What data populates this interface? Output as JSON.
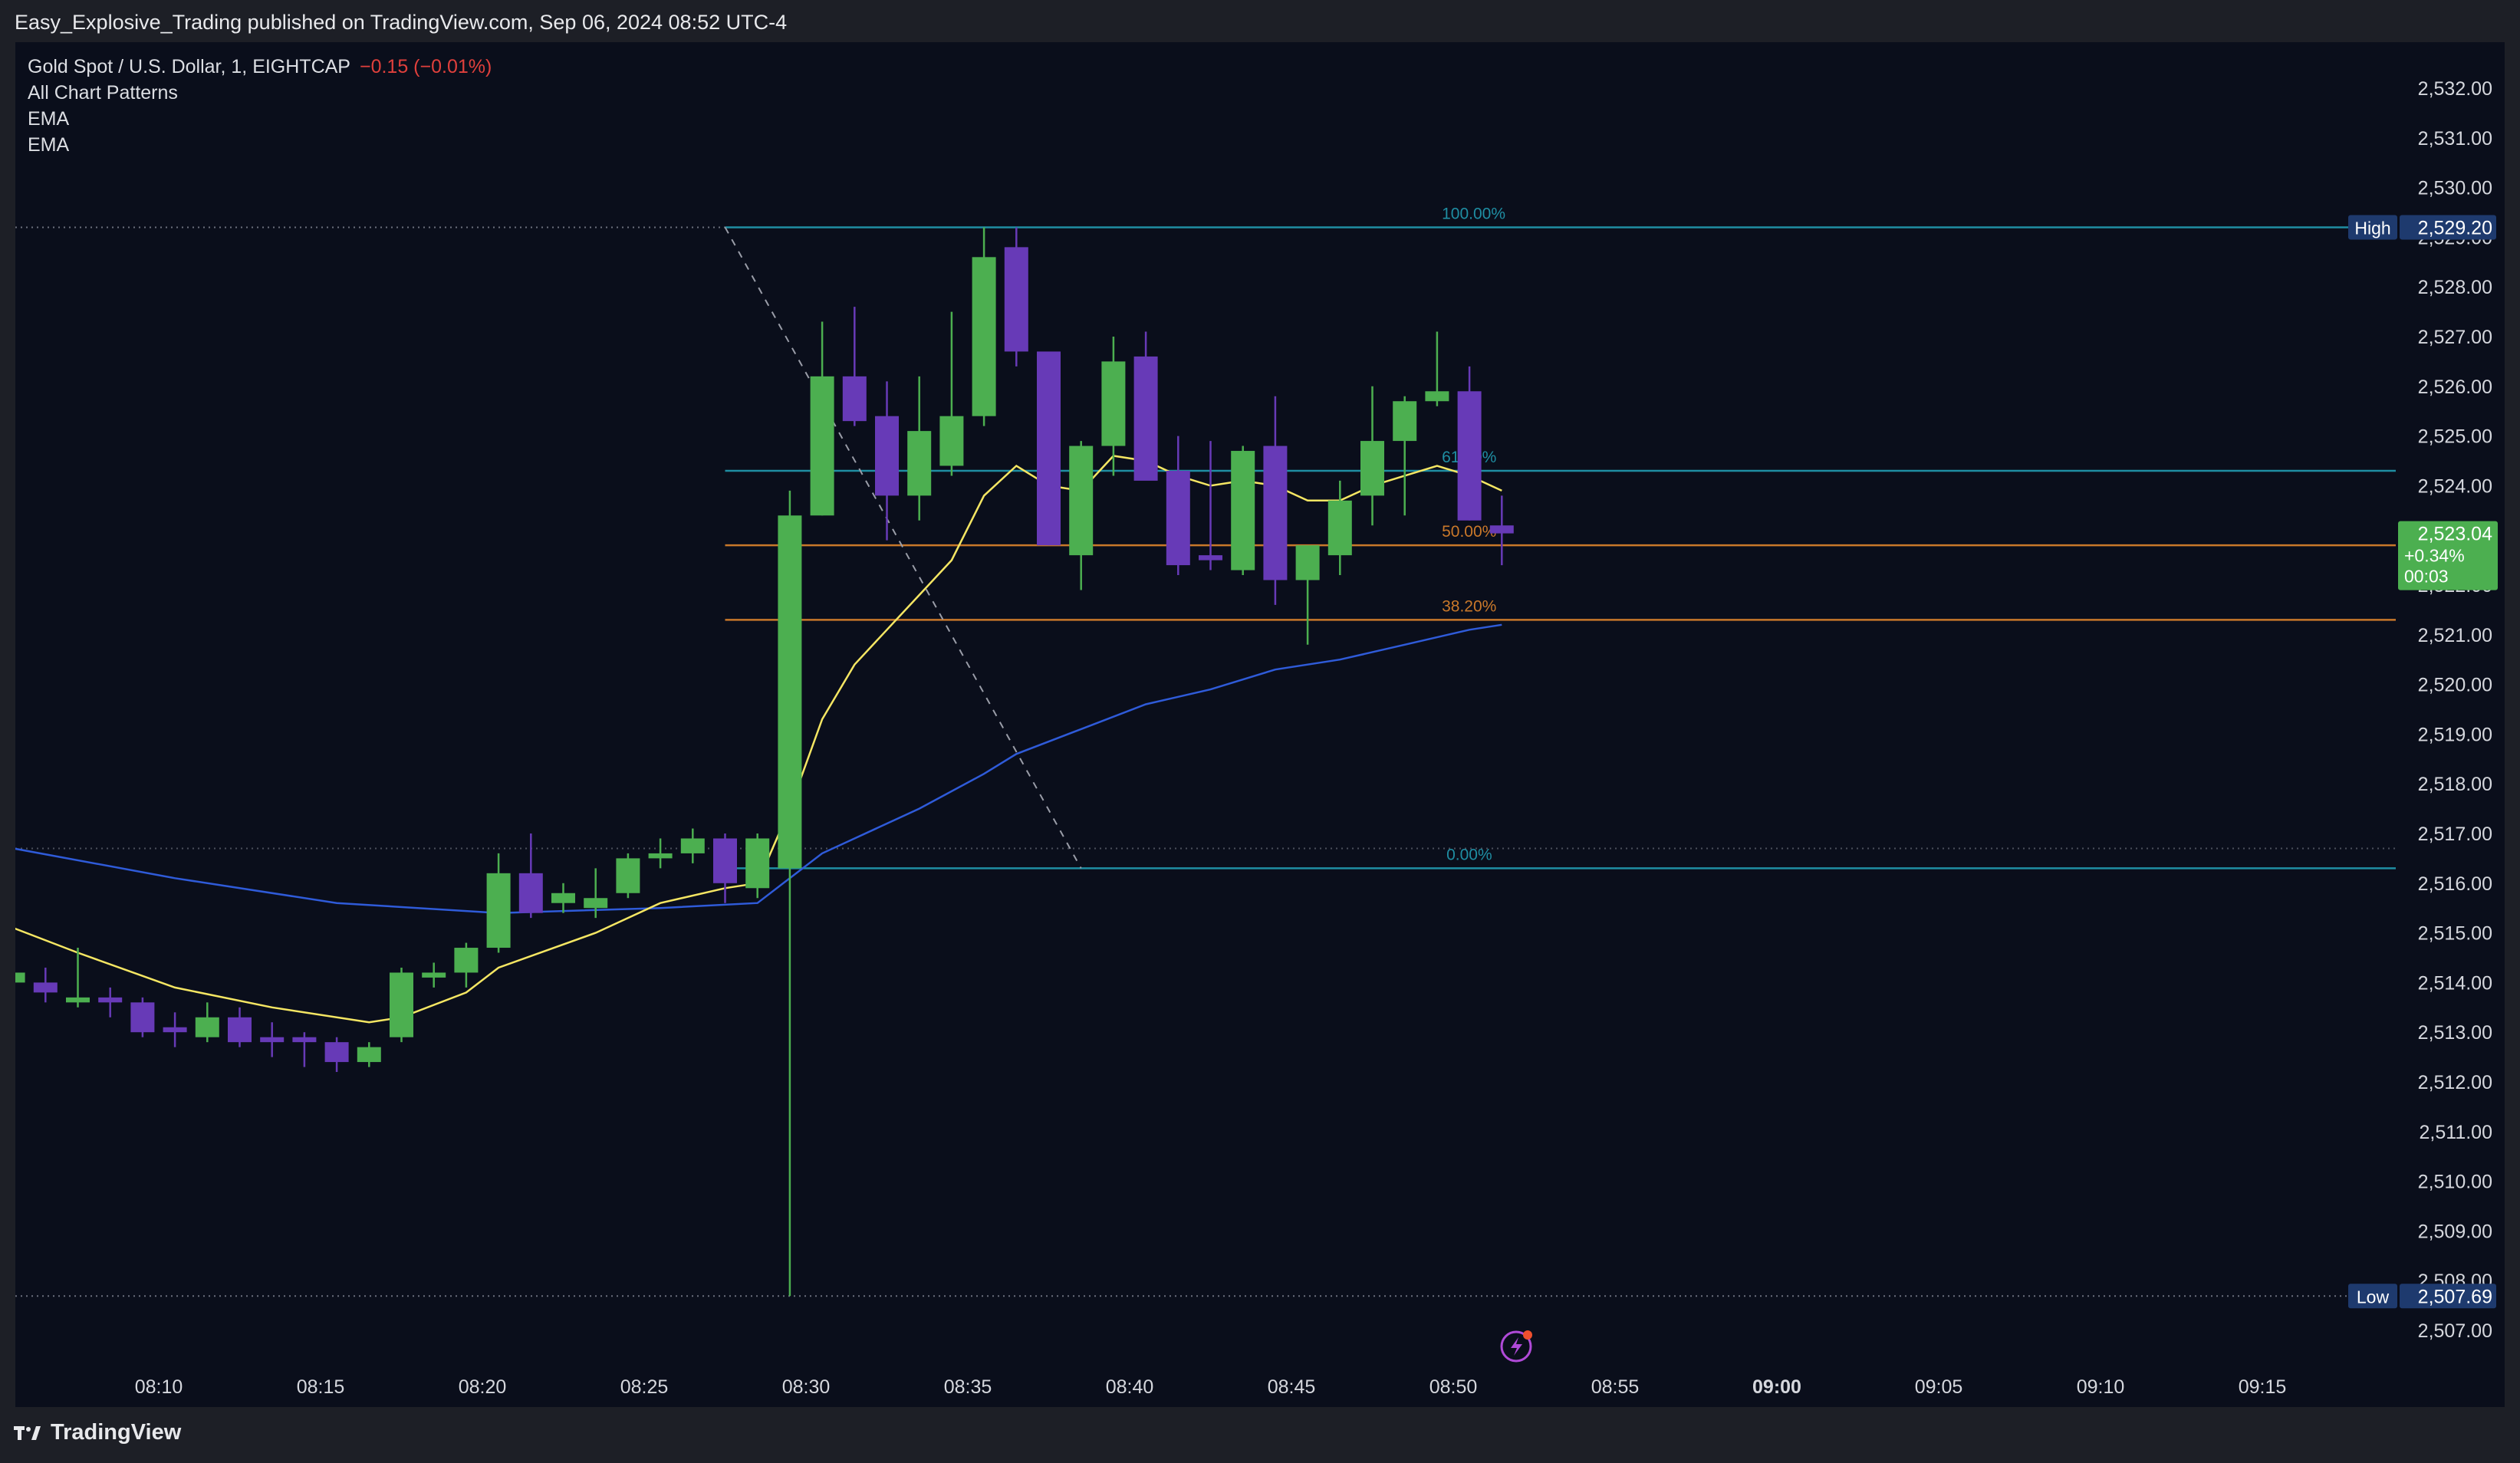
{
  "attribution": "Easy_Explosive_Trading published on TradingView.com, Sep 06, 2024 08:52 UTC-4",
  "footer": {
    "brand": "TradingView"
  },
  "legend": {
    "symbol": "Gold Spot / U.S. Dollar, 1, EIGHTCAP",
    "change": "−0.15 (−0.01%)",
    "indicators": [
      "All Chart Patterns",
      "EMA",
      "EMA"
    ]
  },
  "colors": {
    "background": "#0a0e1b",
    "up_candle": "#4caf50",
    "down_candle": "#673ab7",
    "ema_fast": "#f5e663",
    "ema_slow": "#2f5bd9",
    "fib_teal": "#1f8ea3",
    "fib_orange": "#c9782a",
    "price_label": "#4caf50",
    "high_low_label": "#1e3a6e"
  },
  "chart_data": {
    "type": "candlestick",
    "symbol": "Gold Spot / U.S. Dollar",
    "interval": "1",
    "y_range": [
      2506.5,
      2532.5
    ],
    "y_ticks": [
      "2,507.00",
      "2,508.00",
      "2,509.00",
      "2,510.00",
      "2,511.00",
      "2,512.00",
      "2,513.00",
      "2,514.00",
      "2,515.00",
      "2,516.00",
      "2,517.00",
      "2,518.00",
      "2,519.00",
      "2,520.00",
      "2,521.00",
      "2,522.00",
      "2,523.00",
      "2,524.00",
      "2,525.00",
      "2,526.00",
      "2,527.00",
      "2,528.00",
      "2,529.00",
      "2,530.00",
      "2,531.00",
      "2,532.00"
    ],
    "x_ticks": [
      {
        "label": "08:10",
        "minute": 10
      },
      {
        "label": "08:15",
        "minute": 15
      },
      {
        "label": "08:20",
        "minute": 20
      },
      {
        "label": "08:25",
        "minute": 25
      },
      {
        "label": "08:30",
        "minute": 30
      },
      {
        "label": "08:35",
        "minute": 35
      },
      {
        "label": "08:40",
        "minute": 40
      },
      {
        "label": "08:45",
        "minute": 45
      },
      {
        "label": "08:50",
        "minute": 50
      },
      {
        "label": "08:55",
        "minute": 55
      },
      {
        "label": "09:00",
        "minute": 60,
        "bold": true
      },
      {
        "label": "09:05",
        "minute": 65
      },
      {
        "label": "09:10",
        "minute": 70
      },
      {
        "label": "09:15",
        "minute": 75
      }
    ],
    "x_range_minutes": [
      5.5,
      79.5
    ],
    "candles": [
      {
        "t": 5.5,
        "o": 2514.0,
        "h": 2514.5,
        "l": 2513.7,
        "c": 2514.2
      },
      {
        "t": 6.5,
        "o": 2514.0,
        "h": 2514.3,
        "l": 2513.6,
        "c": 2513.8
      },
      {
        "t": 7.5,
        "o": 2513.6,
        "h": 2514.7,
        "l": 2513.5,
        "c": 2513.7
      },
      {
        "t": 8.5,
        "o": 2513.7,
        "h": 2513.9,
        "l": 2513.3,
        "c": 2513.6
      },
      {
        "t": 9.5,
        "o": 2513.6,
        "h": 2513.7,
        "l": 2512.9,
        "c": 2513.0
      },
      {
        "t": 10.5,
        "o": 2513.1,
        "h": 2513.4,
        "l": 2512.7,
        "c": 2513.0
      },
      {
        "t": 11.5,
        "o": 2512.9,
        "h": 2513.6,
        "l": 2512.8,
        "c": 2513.3
      },
      {
        "t": 12.5,
        "o": 2513.3,
        "h": 2513.5,
        "l": 2512.7,
        "c": 2512.8
      },
      {
        "t": 13.5,
        "o": 2512.9,
        "h": 2513.2,
        "l": 2512.5,
        "c": 2512.8
      },
      {
        "t": 14.5,
        "o": 2512.9,
        "h": 2513.0,
        "l": 2512.3,
        "c": 2512.8
      },
      {
        "t": 15.5,
        "o": 2512.8,
        "h": 2512.9,
        "l": 2512.2,
        "c": 2512.4
      },
      {
        "t": 16.5,
        "o": 2512.4,
        "h": 2512.8,
        "l": 2512.3,
        "c": 2512.7
      },
      {
        "t": 17.5,
        "o": 2512.9,
        "h": 2514.3,
        "l": 2512.8,
        "c": 2514.2
      },
      {
        "t": 18.5,
        "o": 2514.1,
        "h": 2514.4,
        "l": 2513.9,
        "c": 2514.2
      },
      {
        "t": 19.5,
        "o": 2514.2,
        "h": 2514.8,
        "l": 2513.9,
        "c": 2514.7
      },
      {
        "t": 20.5,
        "o": 2514.7,
        "h": 2516.6,
        "l": 2514.6,
        "c": 2516.2
      },
      {
        "t": 21.5,
        "o": 2516.2,
        "h": 2517.0,
        "l": 2515.3,
        "c": 2515.4
      },
      {
        "t": 22.5,
        "o": 2515.6,
        "h": 2516.0,
        "l": 2515.4,
        "c": 2515.8
      },
      {
        "t": 23.5,
        "o": 2515.5,
        "h": 2516.3,
        "l": 2515.3,
        "c": 2515.7
      },
      {
        "t": 24.5,
        "o": 2515.8,
        "h": 2516.6,
        "l": 2515.7,
        "c": 2516.5
      },
      {
        "t": 25.5,
        "o": 2516.5,
        "h": 2516.9,
        "l": 2516.3,
        "c": 2516.6
      },
      {
        "t": 26.5,
        "o": 2516.6,
        "h": 2517.1,
        "l": 2516.4,
        "c": 2516.9
      },
      {
        "t": 27.5,
        "o": 2516.9,
        "h": 2517.0,
        "l": 2515.6,
        "c": 2516.0
      },
      {
        "t": 28.5,
        "o": 2515.9,
        "h": 2517.0,
        "l": 2515.7,
        "c": 2516.9
      },
      {
        "t": 29.5,
        "o": 2516.3,
        "h": 2523.9,
        "l": 2507.69,
        "c": 2523.4
      },
      {
        "t": 30.5,
        "o": 2523.4,
        "h": 2527.3,
        "l": 2523.4,
        "c": 2526.2
      },
      {
        "t": 31.5,
        "o": 2526.2,
        "h": 2527.6,
        "l": 2525.2,
        "c": 2525.3
      },
      {
        "t": 32.5,
        "o": 2525.4,
        "h": 2526.1,
        "l": 2522.9,
        "c": 2523.8
      },
      {
        "t": 33.5,
        "o": 2523.8,
        "h": 2526.2,
        "l": 2523.3,
        "c": 2525.1
      },
      {
        "t": 34.5,
        "o": 2524.4,
        "h": 2527.5,
        "l": 2524.2,
        "c": 2525.4
      },
      {
        "t": 35.5,
        "o": 2525.4,
        "h": 2529.2,
        "l": 2525.2,
        "c": 2528.6
      },
      {
        "t": 36.5,
        "o": 2528.8,
        "h": 2529.2,
        "l": 2526.4,
        "c": 2526.7
      },
      {
        "t": 37.5,
        "o": 2526.7,
        "h": 2526.7,
        "l": 2522.8,
        "c": 2522.8
      },
      {
        "t": 38.5,
        "o": 2522.6,
        "h": 2524.9,
        "l": 2521.9,
        "c": 2524.8
      },
      {
        "t": 39.5,
        "o": 2524.8,
        "h": 2527.0,
        "l": 2524.2,
        "c": 2526.5
      },
      {
        "t": 40.5,
        "o": 2526.6,
        "h": 2527.1,
        "l": 2524.3,
        "c": 2524.1
      },
      {
        "t": 41.5,
        "o": 2524.3,
        "h": 2525.0,
        "l": 2522.2,
        "c": 2522.4
      },
      {
        "t": 42.5,
        "o": 2522.6,
        "h": 2524.9,
        "l": 2522.3,
        "c": 2522.5
      },
      {
        "t": 43.5,
        "o": 2522.3,
        "h": 2524.8,
        "l": 2522.2,
        "c": 2524.7
      },
      {
        "t": 44.5,
        "o": 2524.8,
        "h": 2525.8,
        "l": 2521.6,
        "c": 2522.1
      },
      {
        "t": 45.5,
        "o": 2522.1,
        "h": 2522.7,
        "l": 2520.8,
        "c": 2522.8
      },
      {
        "t": 46.5,
        "o": 2522.6,
        "h": 2524.1,
        "l": 2522.2,
        "c": 2523.7
      },
      {
        "t": 47.5,
        "o": 2523.8,
        "h": 2526.0,
        "l": 2523.2,
        "c": 2524.9
      },
      {
        "t": 48.5,
        "o": 2524.9,
        "h": 2525.8,
        "l": 2523.4,
        "c": 2525.7
      },
      {
        "t": 49.5,
        "o": 2525.7,
        "h": 2527.1,
        "l": 2525.6,
        "c": 2525.9
      },
      {
        "t": 50.5,
        "o": 2525.9,
        "h": 2526.4,
        "l": 2523.3,
        "c": 2523.3
      },
      {
        "t": 51.5,
        "o": 2523.2,
        "h": 2523.8,
        "l": 2522.4,
        "c": 2523.04
      }
    ],
    "ema_fast": [
      [
        5.5,
        2515.1
      ],
      [
        7.5,
        2514.6
      ],
      [
        10.5,
        2513.9
      ],
      [
        13.5,
        2513.5
      ],
      [
        16.5,
        2513.2
      ],
      [
        17.5,
        2513.3
      ],
      [
        19.5,
        2513.8
      ],
      [
        20.5,
        2514.3
      ],
      [
        23.5,
        2515.0
      ],
      [
        25.5,
        2515.6
      ],
      [
        27.5,
        2515.9
      ],
      [
        28.5,
        2516.0
      ],
      [
        29.5,
        2517.5
      ],
      [
        30.5,
        2519.3
      ],
      [
        31.5,
        2520.4
      ],
      [
        32.5,
        2521.1
      ],
      [
        33.5,
        2521.8
      ],
      [
        34.5,
        2522.5
      ],
      [
        35.5,
        2523.8
      ],
      [
        36.5,
        2524.4
      ],
      [
        37.5,
        2524.0
      ],
      [
        38.5,
        2523.9
      ],
      [
        39.5,
        2524.6
      ],
      [
        40.5,
        2524.5
      ],
      [
        41.5,
        2524.2
      ],
      [
        42.5,
        2524.0
      ],
      [
        43.5,
        2524.1
      ],
      [
        44.5,
        2524.0
      ],
      [
        45.5,
        2523.7
      ],
      [
        46.5,
        2523.7
      ],
      [
        47.5,
        2524.0
      ],
      [
        48.5,
        2524.2
      ],
      [
        49.5,
        2524.4
      ],
      [
        50.5,
        2524.2
      ],
      [
        51.5,
        2523.9
      ]
    ],
    "ema_slow": [
      [
        5.5,
        2516.7
      ],
      [
        10.5,
        2516.1
      ],
      [
        15.5,
        2515.6
      ],
      [
        20.5,
        2515.4
      ],
      [
        25.5,
        2515.5
      ],
      [
        28.5,
        2515.6
      ],
      [
        29.5,
        2516.1
      ],
      [
        30.5,
        2516.6
      ],
      [
        31.5,
        2516.9
      ],
      [
        33.5,
        2517.5
      ],
      [
        35.5,
        2518.2
      ],
      [
        36.5,
        2518.6
      ],
      [
        38.5,
        2519.1
      ],
      [
        40.5,
        2519.6
      ],
      [
        42.5,
        2519.9
      ],
      [
        44.5,
        2520.3
      ],
      [
        46.5,
        2520.5
      ],
      [
        48.5,
        2520.8
      ],
      [
        50.5,
        2521.1
      ],
      [
        51.5,
        2521.2
      ]
    ],
    "fib_levels": [
      {
        "label": "100.00%",
        "price": 2529.2,
        "color": "#1f8ea3"
      },
      {
        "label": "61.80%",
        "price": 2524.3,
        "color": "#1f8ea3"
      },
      {
        "label": "50.00%",
        "price": 2522.8,
        "color": "#c9782a"
      },
      {
        "label": "38.20%",
        "price": 2521.3,
        "color": "#c9782a"
      },
      {
        "label": "0.00%",
        "price": 2516.3,
        "color": "#1f8ea3"
      }
    ],
    "fib_start_minute": 27.5,
    "fib_trend": {
      "from": [
        27.5,
        2529.2
      ],
      "to": [
        38.5,
        2516.3
      ]
    },
    "high": {
      "label": "High",
      "value": "2,529.20",
      "price": 2529.2
    },
    "low": {
      "label": "Low",
      "value": "2,507.69",
      "price": 2507.69
    },
    "reference_price": 2516.7,
    "last_price": {
      "value": "2,523.04",
      "change": "+0.34%",
      "countdown": "00:03",
      "price": 2523.04
    }
  }
}
